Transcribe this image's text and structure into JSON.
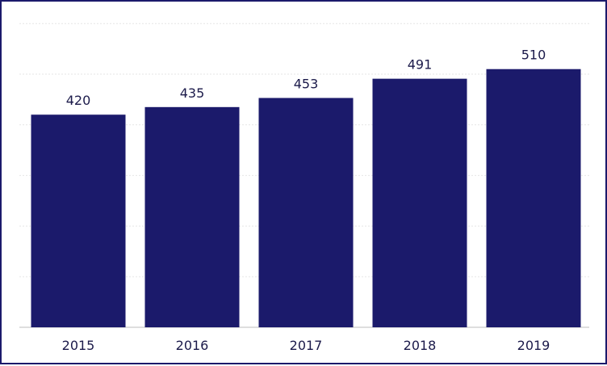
{
  "chart_data": {
    "type": "bar",
    "categories": [
      "2015",
      "2016",
      "2017",
      "2018",
      "2019"
    ],
    "values": [
      420,
      435,
      453,
      491,
      510
    ],
    "value_labels": [
      "420",
      "435",
      "453",
      "491",
      "510"
    ],
    "title": "",
    "xlabel": "",
    "ylabel": "",
    "ylim": [
      0,
      600
    ],
    "grid": true,
    "bar_color": "#1b1a6b"
  }
}
